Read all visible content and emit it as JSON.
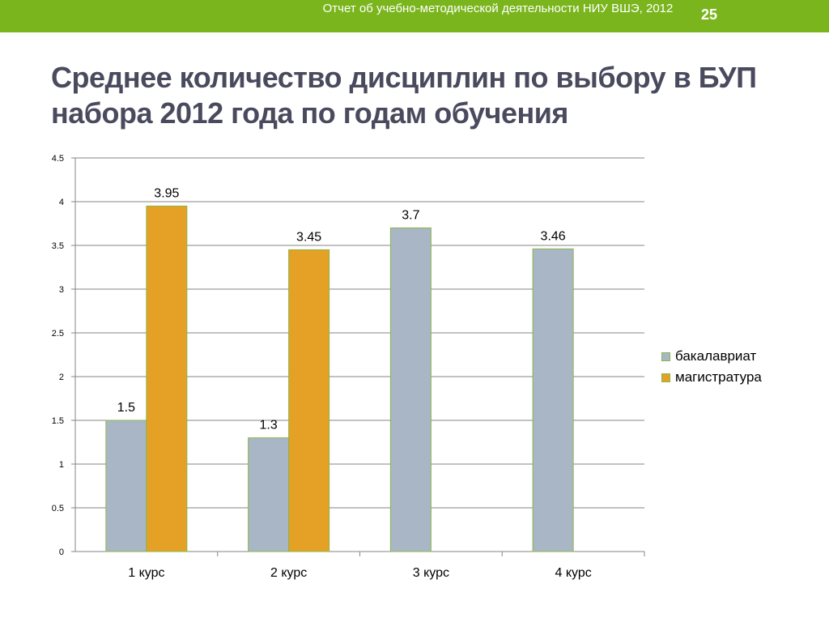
{
  "header": {
    "report_title": "Отчет об учебно-методической деятельности НИУ ВШЭ, 2012",
    "page_number": "25"
  },
  "slide": {
    "title": "Среднее количество дисциплин по выбору в БУП набора 2012 года по годам обучения"
  },
  "colors": {
    "topbar": "#7ab51d",
    "bachelor": "#a9b6c6",
    "master": "#e5a125",
    "bar_border": "#8ab54a"
  },
  "chart_data": {
    "type": "bar",
    "categories": [
      "1 курс",
      "2 курс",
      "3 курс",
      "4 курс"
    ],
    "series": [
      {
        "name": "бакалавриат",
        "values": [
          1.5,
          1.3,
          3.7,
          3.46
        ]
      },
      {
        "name": "магистратура",
        "values": [
          3.95,
          3.45,
          null,
          null
        ]
      }
    ],
    "data_labels": [
      [
        "1.5",
        "1.3",
        "3.7",
        "3.46"
      ],
      [
        "3.95",
        "3.45",
        null,
        null
      ]
    ],
    "ylim": [
      0,
      4.5
    ],
    "yticks": [
      "0",
      "0.5",
      "1",
      "1.5",
      "2",
      "2.5",
      "3",
      "3.5",
      "4",
      "4.5"
    ],
    "title": "",
    "xlabel": "",
    "ylabel": "",
    "grid": true,
    "legend_position": "right"
  }
}
